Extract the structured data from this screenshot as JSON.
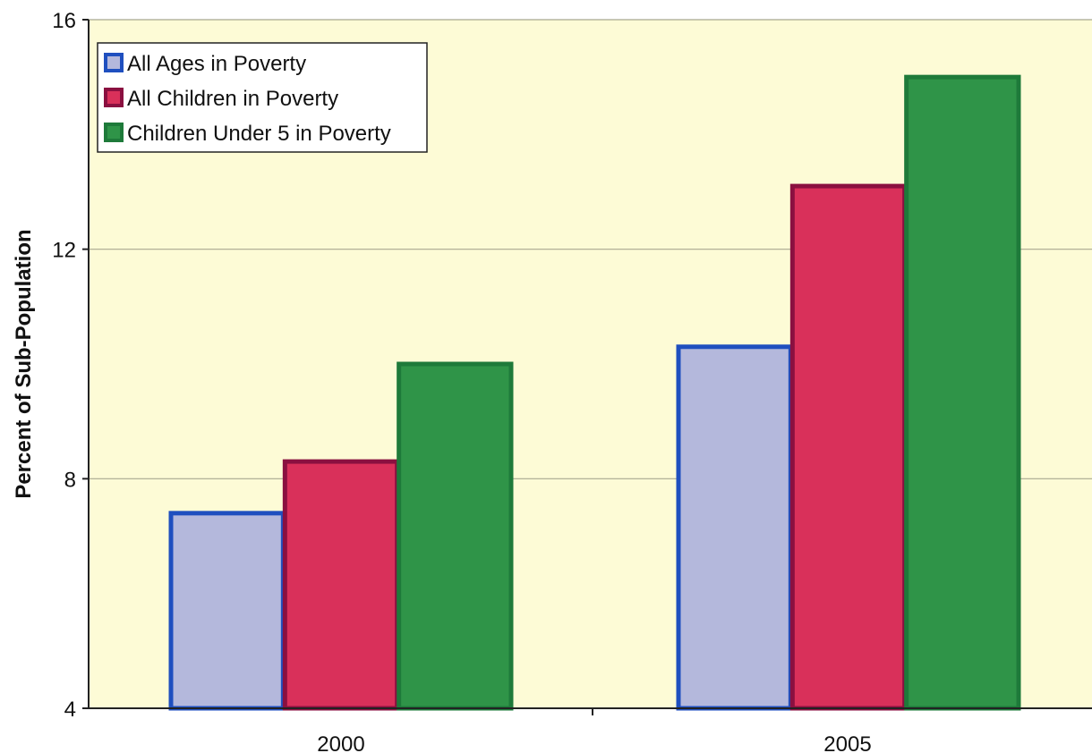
{
  "chart_data": {
    "type": "bar",
    "title": "",
    "xlabel": "",
    "ylabel": "Percent of Sub-Population",
    "ylim": [
      4,
      16
    ],
    "yticks": [
      4,
      8,
      12,
      16
    ],
    "grid": true,
    "legend_position": "top-left",
    "categories": [
      "2000",
      "2005"
    ],
    "series": [
      {
        "name": "All Ages in Poverty",
        "values": [
          7.4,
          10.3
        ],
        "fill": "#b4b8dc",
        "edge": "#1f4fbf"
      },
      {
        "name": "All Children in Poverty",
        "values": [
          8.3,
          13.1
        ],
        "fill": "#d9305a",
        "edge": "#8a1040"
      },
      {
        "name": "Children Under 5 in Poverty",
        "values": [
          10.0,
          15.0
        ],
        "fill": "#2f9448",
        "edge": "#1e7a3a"
      }
    ],
    "colors": {
      "plot_background": "#fdfbd6",
      "gridline": "#a8a890",
      "axis": "#222222"
    }
  }
}
